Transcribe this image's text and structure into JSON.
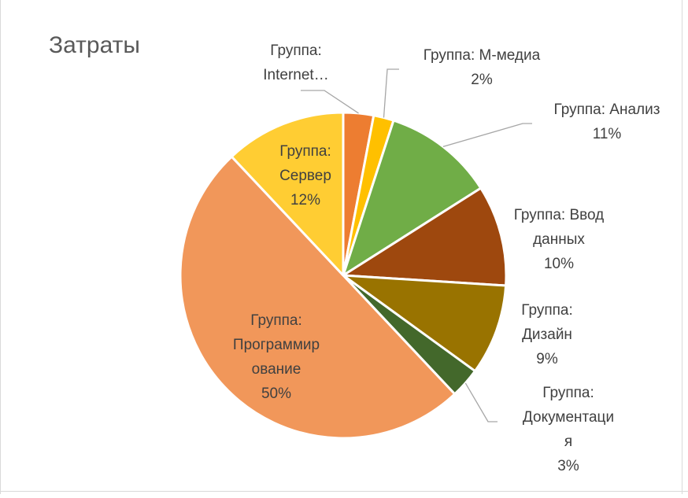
{
  "chart_data": {
    "type": "pie",
    "title": "Затраты",
    "slices": [
      {
        "label_lines": [
          "Группа:",
          "Internet…"
        ],
        "value": 3,
        "percent_label": "",
        "color": "#ED7D31"
      },
      {
        "label_lines": [
          "Группа: М-медиа"
        ],
        "value": 2,
        "percent_label": "2%",
        "color": "#FFC000"
      },
      {
        "label_lines": [
          "Группа: Анализ"
        ],
        "value": 11,
        "percent_label": "11%",
        "color": "#70AD47"
      },
      {
        "label_lines": [
          "Группа: Ввод",
          "данных"
        ],
        "value": 10,
        "percent_label": "10%",
        "color": "#9E480E"
      },
      {
        "label_lines": [
          "Группа:",
          "Дизайн"
        ],
        "value": 9,
        "percent_label": "9%",
        "color": "#997300"
      },
      {
        "label_lines": [
          "Группа:",
          "Документаци",
          "я"
        ],
        "value": 3,
        "percent_label": "3%",
        "color": "#43682B"
      },
      {
        "label_lines": [
          "Группа:",
          "Программир",
          "ование"
        ],
        "value": 50,
        "percent_label": "50%",
        "color": "#F1975A"
      },
      {
        "label_lines": [
          "Группа:",
          "Сервер"
        ],
        "value": 12,
        "percent_label": "12%",
        "color": "#FFCD33"
      }
    ],
    "legend": "none",
    "data_labels": "category name and percentage"
  }
}
